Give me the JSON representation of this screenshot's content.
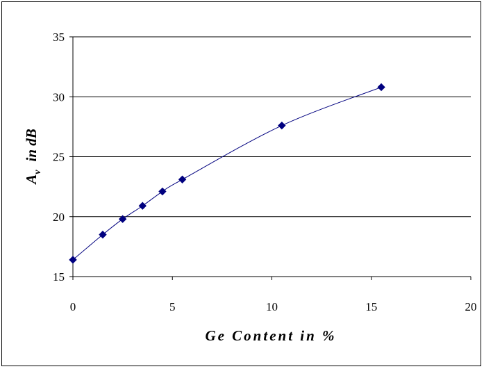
{
  "chart_data": {
    "type": "scatter",
    "xlabel": "Ge Content in %",
    "ylabel_main": "A",
    "ylabel_sub": "v",
    "ylabel_rest": "in dB",
    "xlim": [
      0,
      20
    ],
    "ylim": [
      15,
      35
    ],
    "x_ticks": [
      0,
      5,
      10,
      15,
      20
    ],
    "y_ticks": [
      15,
      20,
      25,
      30,
      35
    ],
    "grid": "horizontal",
    "legend": "none",
    "marker": "diamond",
    "trendline": true,
    "color": "#00007f",
    "series": [
      {
        "x": [
          0,
          1.5,
          2.5,
          3.5,
          4.5,
          5.5,
          10.5,
          15.5
        ],
        "y": [
          16.4,
          18.5,
          19.8,
          20.9,
          22.1,
          23.1,
          27.6,
          30.8
        ]
      }
    ]
  }
}
